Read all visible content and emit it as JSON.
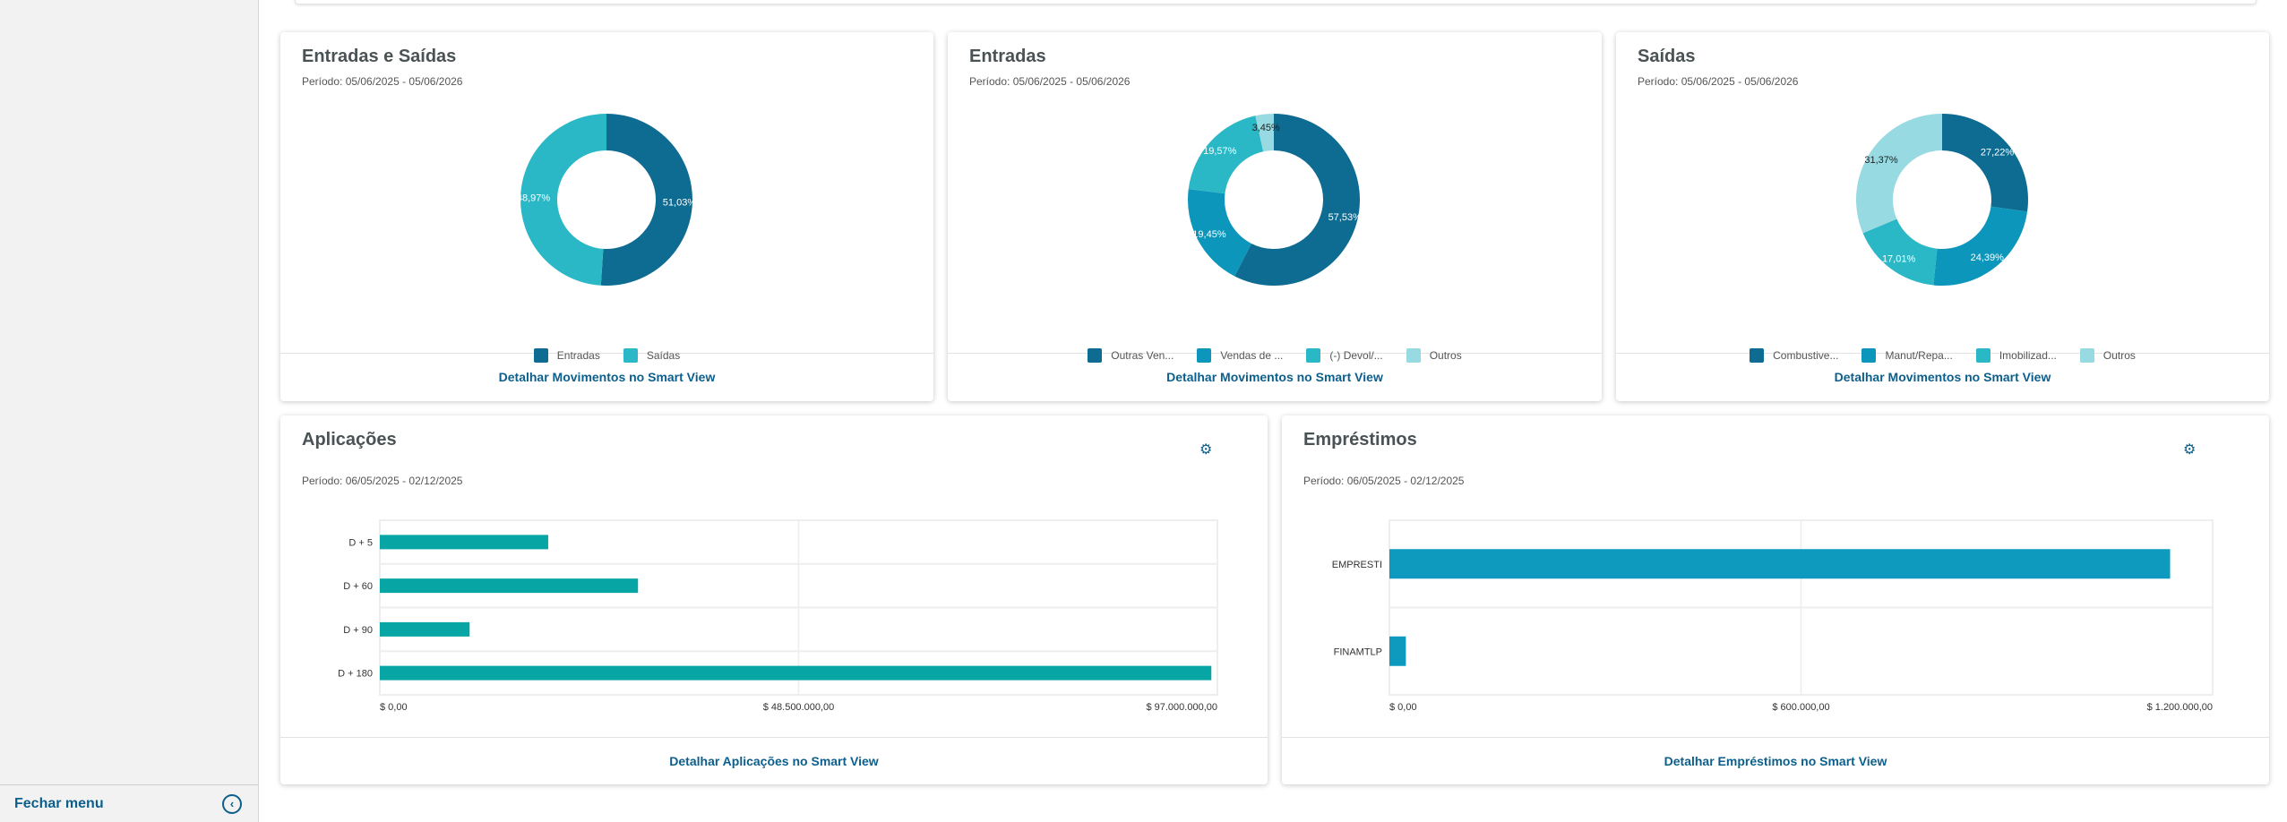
{
  "sidebar": {
    "close_menu": "Fechar menu"
  },
  "colors": {
    "c1": "#0e6b92",
    "c2": "#0c96bb",
    "c3": "#2ab7c6",
    "c4": "#97dae2",
    "bar_aplic": "#08a5a5",
    "bar_empr": "#0e9abf"
  },
  "cards": [
    {
      "title": "Entradas e Saídas",
      "period": "Período: 05/06/2025 - 05/06/2026",
      "link": "Detalhar Movimentos no Smart View"
    },
    {
      "title": "Entradas",
      "period": "Período: 05/06/2025 - 05/06/2026",
      "link": "Detalhar Movimentos no Smart View"
    },
    {
      "title": "Saídas",
      "period": "Período: 05/06/2025 - 05/06/2026",
      "link": "Detalhar Movimentos no Smart View"
    },
    {
      "title": "Aplicações",
      "period": "Período: 06/05/2025 - 02/12/2025",
      "link": "Detalhar Aplicações no Smart View"
    },
    {
      "title": "Empréstimos",
      "period": "Período: 06/05/2025 - 02/12/2025",
      "link": "Detalhar Empréstimos no Smart View"
    }
  ],
  "chart_data": [
    {
      "type": "pie",
      "title": "Entradas e Saídas",
      "categories": [
        "Entradas",
        "Saídas"
      ],
      "values": [
        51.03,
        48.97
      ],
      "labels": [
        "51,03%",
        "48,97%"
      ],
      "colors": [
        "#0e6b92",
        "#2ab7c6"
      ],
      "label_colors": [
        "#fff",
        "#fff"
      ]
    },
    {
      "type": "pie",
      "title": "Entradas",
      "categories": [
        "Outras Ven...",
        "Vendas de ...",
        "(-) Devol/...",
        "Outros"
      ],
      "values": [
        57.53,
        19.45,
        19.57,
        3.45
      ],
      "labels": [
        "57,53%",
        "19,45%",
        "19,57%",
        "3,45%"
      ],
      "colors": [
        "#0e6b92",
        "#0c96bb",
        "#2ab7c6",
        "#97dae2"
      ],
      "label_colors": [
        "#fff",
        "#fff",
        "#fff",
        "#222"
      ]
    },
    {
      "type": "pie",
      "title": "Saídas",
      "categories": [
        "Combustive...",
        "Manut/Repa...",
        "Imobilizad...",
        "Outros"
      ],
      "values": [
        27.22,
        24.39,
        17.01,
        31.37
      ],
      "labels": [
        "27,22%",
        "24,39%",
        "17,01%",
        "31,37%"
      ],
      "colors": [
        "#0e6b92",
        "#0c96bb",
        "#2ab7c6",
        "#97dae2"
      ],
      "label_colors": [
        "#fff",
        "#fff",
        "#fff",
        "#222"
      ]
    },
    {
      "type": "bar",
      "orientation": "horizontal",
      "title": "Aplicações",
      "categories": [
        "D + 5",
        "D + 60",
        "D + 90",
        "D + 180"
      ],
      "values": [
        19500000,
        29900000,
        10400000,
        96300000
      ],
      "xlim": [
        0,
        97000000
      ],
      "ticks": [
        "$ 0,00",
        "$ 48.500.000,00",
        "$ 97.000.000,00"
      ],
      "color": "#08a5a5"
    },
    {
      "type": "bar",
      "orientation": "horizontal",
      "title": "Empréstimos",
      "categories": [
        "EMPRESTI",
        "FINAMTLP"
      ],
      "values": [
        1138000,
        24000
      ],
      "xlim": [
        0,
        1200000
      ],
      "ticks": [
        "$ 0,00",
        "$ 600.000,00",
        "$ 1.200.000,00"
      ],
      "color": "#0e9abf"
    }
  ]
}
